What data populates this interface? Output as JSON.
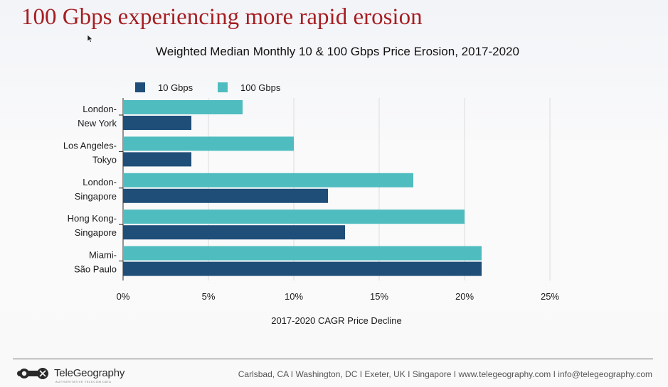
{
  "slide": {
    "title": "100 Gbps experiencing more rapid erosion"
  },
  "chart_data": {
    "type": "bar",
    "orientation": "horizontal",
    "title": "Weighted Median Monthly 10 & 100 Gbps Price Erosion, 2017-2020",
    "xlabel": "2017-2020 CAGR Price Decline",
    "ylabel": "",
    "categories": [
      [
        "London-",
        "New York"
      ],
      [
        "Los Angeles-",
        "Tokyo"
      ],
      [
        "London-",
        "Singapore"
      ],
      [
        "Hong Kong-",
        "Singapore"
      ],
      [
        "Miami-",
        "São Paulo"
      ]
    ],
    "series": [
      {
        "name": "10 Gbps",
        "color": "#1f4e79",
        "values": [
          4,
          4,
          12,
          13,
          21
        ]
      },
      {
        "name": "100 Gbps",
        "color": "#4fbcbf",
        "values": [
          7,
          10,
          17,
          20,
          21
        ]
      }
    ],
    "xlim": [
      0,
      25
    ],
    "xticks": [
      0,
      5,
      10,
      15,
      20,
      25
    ],
    "xtick_labels": [
      "0%",
      "5%",
      "10%",
      "15%",
      "20%",
      "25%"
    ],
    "grid": "vertical",
    "legend_position": "top-left"
  },
  "footer": {
    "brand": "TeleGeography",
    "tagline": "AUTHORITATIVE TELECOM DATA",
    "text": "Carlsbad, CA I Washington, DC I Exeter, UK I Singapore I www.telegeography.com I info@telegeography.com"
  }
}
